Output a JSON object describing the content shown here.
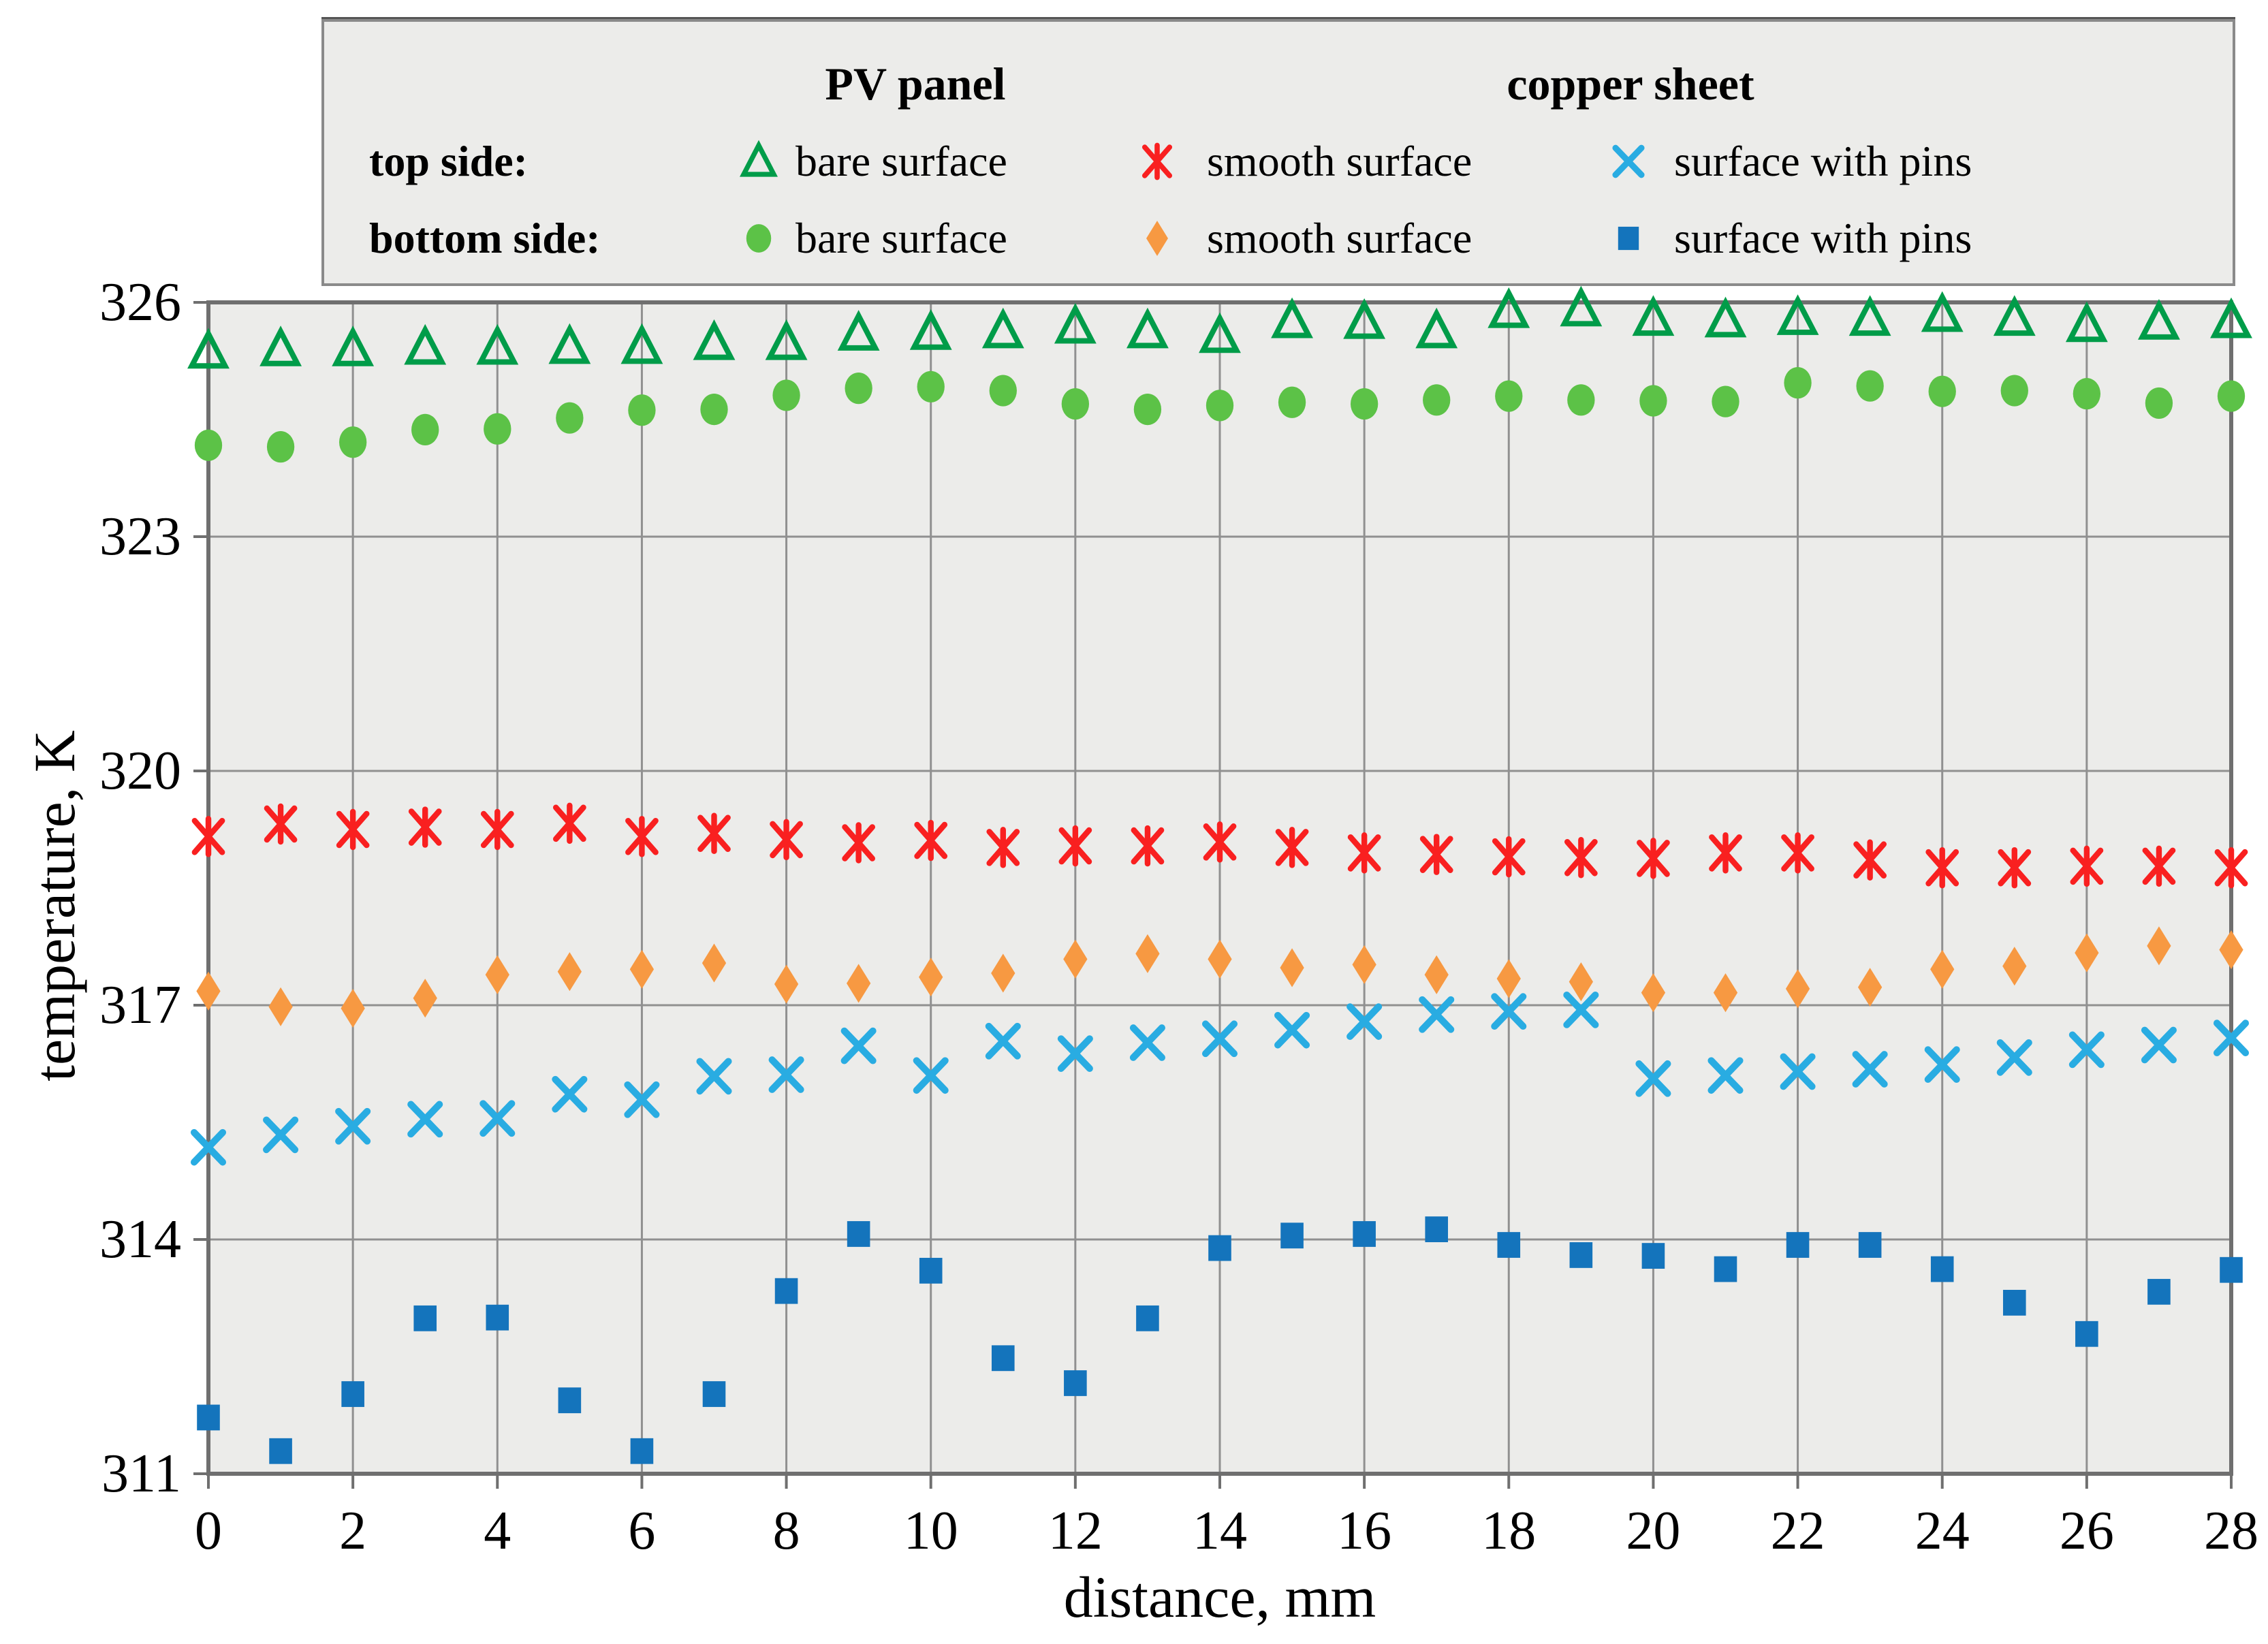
{
  "chart_data": {
    "type": "scatter",
    "title": "",
    "xlabel": "distance, mm",
    "ylabel": "temperature, K",
    "xlim": [
      0,
      28
    ],
    "ylim": [
      311,
      326
    ],
    "x_ticks": [
      0,
      2,
      4,
      6,
      8,
      10,
      12,
      14,
      16,
      18,
      20,
      22,
      24,
      26,
      28
    ],
    "y_ticks": [
      311,
      314,
      317,
      320,
      323,
      326
    ],
    "grid": true,
    "legend_position": "top",
    "colors": {
      "plot_background": "#ECECEA",
      "grid_line": "#909090",
      "plot_border": "#6F6F6F",
      "pv_top_green": "#009C49",
      "pv_bottom_green": "#5CC247",
      "copper_smooth_top_red": "#F92020",
      "copper_smooth_bottom_orange": "#F79942",
      "copper_pins_top_cyan": "#29ACE2",
      "copper_pins_bottom_blue": "#1474BC",
      "text": "#000000"
    },
    "legend": {
      "col_headers": [
        "PV panel",
        "copper sheet"
      ],
      "rows": [
        {
          "label": "top side:",
          "entries": [
            {
              "text": "bare surface",
              "marker": "triangle-open",
              "color": "#009C49"
            },
            {
              "text": "smooth surface",
              "marker": "asterisk",
              "color": "#F92020"
            },
            {
              "text": "surface with pins",
              "marker": "x",
              "color": "#29ACE2"
            }
          ]
        },
        {
          "label": "bottom side:",
          "entries": [
            {
              "text": "bare surface",
              "marker": "circle",
              "color": "#5CC247"
            },
            {
              "text": "smooth surface",
              "marker": "diamond",
              "color": "#F79942"
            },
            {
              "text": "surface with pins",
              "marker": "square",
              "color": "#1474BC"
            }
          ]
        }
      ]
    },
    "x": [
      0,
      1,
      2,
      3,
      4,
      5,
      6,
      7,
      8,
      9,
      10,
      11,
      12,
      13,
      14,
      15,
      16,
      17,
      18,
      19,
      20,
      21,
      22,
      23,
      24,
      25,
      26,
      27,
      28
    ],
    "series": [
      {
        "name": "PV panel - top side: bare surface",
        "marker": "triangle-open",
        "color": "#009C49",
        "values": [
          325.37,
          325.4,
          325.4,
          325.42,
          325.42,
          325.43,
          325.43,
          325.48,
          325.48,
          325.6,
          325.61,
          325.63,
          325.69,
          325.63,
          325.57,
          325.76,
          325.75,
          325.63,
          325.89,
          325.91,
          325.79,
          325.77,
          325.8,
          325.79,
          325.84,
          325.79,
          325.71,
          325.74,
          325.76
        ]
      },
      {
        "name": "PV panel - bottom side: bare surface",
        "marker": "circle",
        "color": "#5CC247",
        "values": [
          324.17,
          324.15,
          324.21,
          324.37,
          324.38,
          324.52,
          324.62,
          324.63,
          324.81,
          324.9,
          324.92,
          324.87,
          324.7,
          324.63,
          324.68,
          324.72,
          324.7,
          324.75,
          324.8,
          324.75,
          324.74,
          324.73,
          324.97,
          324.93,
          324.86,
          324.87,
          324.83,
          324.71,
          324.8
        ]
      },
      {
        "name": "copper sheet - top side: smooth surface",
        "marker": "asterisk",
        "color": "#F92020",
        "values": [
          319.16,
          319.32,
          319.25,
          319.28,
          319.25,
          319.33,
          319.16,
          319.2,
          319.12,
          319.08,
          319.11,
          319.02,
          319.04,
          319.04,
          319.09,
          319.02,
          318.95,
          318.93,
          318.9,
          318.89,
          318.88,
          318.95,
          318.95,
          318.86,
          318.76,
          318.76,
          318.78,
          318.78,
          318.76
        ]
      },
      {
        "name": "copper sheet - bottom side: smooth surface",
        "marker": "diamond",
        "color": "#F79942",
        "values": [
          317.18,
          316.98,
          316.96,
          317.09,
          317.39,
          317.43,
          317.46,
          317.54,
          317.27,
          317.28,
          317.36,
          317.41,
          317.59,
          317.66,
          317.59,
          317.48,
          317.52,
          317.39,
          317.34,
          317.3,
          317.16,
          317.16,
          317.21,
          317.23,
          317.46,
          317.5,
          317.67,
          317.76,
          317.71
        ]
      },
      {
        "name": "copper sheet - top side: surface with pins",
        "marker": "x",
        "color": "#29ACE2",
        "values": [
          315.18,
          315.34,
          315.45,
          315.54,
          315.55,
          315.86,
          315.79,
          316.09,
          316.11,
          316.48,
          316.1,
          316.54,
          316.38,
          316.52,
          316.57,
          316.68,
          316.79,
          316.88,
          316.92,
          316.94,
          316.06,
          316.1,
          316.15,
          316.18,
          316.24,
          316.33,
          316.43,
          316.49,
          316.58
        ]
      },
      {
        "name": "copper sheet - bottom side: surface with pins",
        "marker": "square",
        "color": "#1474BC",
        "values": [
          311.72,
          311.29,
          312.02,
          312.99,
          313.0,
          311.94,
          311.29,
          312.02,
          313.34,
          314.07,
          313.6,
          312.48,
          312.16,
          312.99,
          313.89,
          314.05,
          314.07,
          314.13,
          313.93,
          313.8,
          313.79,
          313.62,
          313.93,
          313.93,
          313.62,
          313.19,
          312.79,
          313.33,
          313.61
        ]
      }
    ]
  }
}
